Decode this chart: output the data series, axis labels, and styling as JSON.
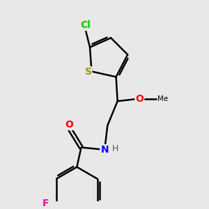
{
  "background_color": "#e8e8e8",
  "bond_color": "#000000",
  "bond_width": 1.8,
  "atoms": {
    "Cl": {
      "color": "#00cc00",
      "fontsize": 10,
      "fontweight": "bold"
    },
    "S": {
      "color": "#999900",
      "fontsize": 10,
      "fontweight": "bold"
    },
    "O": {
      "color": "#ff0000",
      "fontsize": 10,
      "fontweight": "bold"
    },
    "N": {
      "color": "#0000ff",
      "fontsize": 10,
      "fontweight": "bold"
    },
    "F": {
      "color": "#ff00aa",
      "fontsize": 10,
      "fontweight": "bold"
    },
    "H": {
      "color": "#444444",
      "fontsize": 9,
      "fontweight": "normal"
    }
  },
  "figsize": [
    3.0,
    3.0
  ],
  "dpi": 100
}
